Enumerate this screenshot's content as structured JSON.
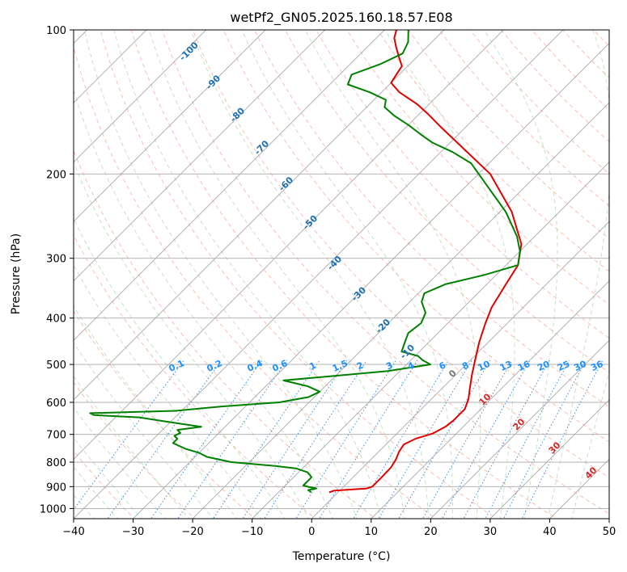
{
  "chart_data": {
    "type": "line",
    "title": "wetPf2_GN05.2025.160.18.57.E08",
    "xlabel": "Temperature (°C)",
    "ylabel": "Pressure (hPa)",
    "xlim": [
      -40,
      50
    ],
    "ylim": [
      1050,
      100
    ],
    "yscale": "log",
    "x_ticks": [
      -40,
      -30,
      -20,
      -10,
      0,
      10,
      20,
      30,
      40,
      50
    ],
    "y_ticks": [
      100,
      200,
      300,
      400,
      500,
      600,
      700,
      800,
      900,
      1000
    ],
    "grid": true,
    "skew": "skew-T log-P",
    "series": [
      {
        "color": "#e00000",
        "points": [
          [
            -1.5,
            925
          ],
          [
            -1,
            918
          ],
          [
            2,
            912
          ],
          [
            4.2,
            908
          ],
          [
            4.8,
            900
          ],
          [
            4.8,
            860
          ],
          [
            4.7,
            820
          ],
          [
            4.2,
            790
          ],
          [
            3.4,
            760
          ],
          [
            3.0,
            735
          ],
          [
            4.0,
            715
          ],
          [
            6.0,
            697
          ],
          [
            7.0,
            675
          ],
          [
            7.3,
            655
          ],
          [
            7.3,
            620
          ],
          [
            6.2,
            590
          ],
          [
            4.6,
            560
          ],
          [
            2.7,
            525
          ],
          [
            0.8,
            490
          ],
          [
            -1.5,
            450
          ],
          [
            -3.7,
            410
          ],
          [
            -5.3,
            380
          ],
          [
            -6.8,
            340
          ],
          [
            -8.0,
            310
          ],
          [
            -11.0,
            280
          ],
          [
            -18.0,
            240
          ],
          [
            -28.0,
            200
          ],
          [
            -44.0,
            160
          ],
          [
            -48.5,
            150
          ],
          [
            -52.0,
            143
          ],
          [
            -57.0,
            135
          ],
          [
            -60.0,
            129
          ],
          [
            -60.5,
            124
          ],
          [
            -61.0,
            119
          ],
          [
            -63.0,
            114
          ],
          [
            -65.0,
            109
          ],
          [
            -67.0,
            104
          ],
          [
            -68.0,
            100
          ]
        ]
      },
      {
        "color": "#008000",
        "points": [
          [
            -4.5,
            925
          ],
          [
            -5.4,
            915
          ],
          [
            -4.3,
            908
          ],
          [
            -5.7,
            902
          ],
          [
            -7.0,
            895
          ],
          [
            -7.0,
            880
          ],
          [
            -7.0,
            860
          ],
          [
            -8.5,
            840
          ],
          [
            -11.0,
            825
          ],
          [
            -15.0,
            815
          ],
          [
            -23.0,
            800
          ],
          [
            -28.0,
            780
          ],
          [
            -30.0,
            765
          ],
          [
            -33.0,
            750
          ],
          [
            -36.0,
            730
          ],
          [
            -36.0,
            715
          ],
          [
            -37.0,
            705
          ],
          [
            -36.5,
            695
          ],
          [
            -37.5,
            685
          ],
          [
            -34.0,
            675
          ],
          [
            -38.0,
            665
          ],
          [
            -42.0,
            655
          ],
          [
            -46.0,
            645
          ],
          [
            -54.0,
            638
          ],
          [
            -55.0,
            632
          ],
          [
            -41.0,
            625
          ],
          [
            -34.0,
            612
          ],
          [
            -25.0,
            600
          ],
          [
            -21.0,
            585
          ],
          [
            -20.0,
            570
          ],
          [
            -23.0,
            555
          ],
          [
            -28.0,
            540
          ],
          [
            -20.0,
            528
          ],
          [
            -12.0,
            516
          ],
          [
            -6.0,
            500
          ],
          [
            -8.0,
            490
          ],
          [
            -9.5,
            480
          ],
          [
            -13.0,
            470
          ],
          [
            -14.0,
            450
          ],
          [
            -15.0,
            430
          ],
          [
            -14.5,
            410
          ],
          [
            -15.5,
            390
          ],
          [
            -18.0,
            370
          ],
          [
            -19.0,
            355
          ],
          [
            -17.0,
            340
          ],
          [
            -12.0,
            325
          ],
          [
            -8.0,
            310
          ],
          [
            -10.0,
            290
          ],
          [
            -13.0,
            270
          ],
          [
            -19.0,
            240
          ],
          [
            -27.0,
            210
          ],
          [
            -33.0,
            190
          ],
          [
            -38.0,
            180
          ],
          [
            -43.0,
            172
          ],
          [
            -46.0,
            166
          ],
          [
            -50.0,
            158
          ],
          [
            -54.0,
            151
          ],
          [
            -57.0,
            145
          ],
          [
            -58.0,
            140
          ],
          [
            -62.0,
            135
          ],
          [
            -67.0,
            130
          ],
          [
            -68.0,
            124
          ],
          [
            -65.0,
            118
          ],
          [
            -63.0,
            112
          ],
          [
            -64.0,
            106
          ],
          [
            -66.0,
            100
          ]
        ]
      }
    ],
    "dry_adiabat_labels": [
      "-100",
      "-90",
      "-80",
      "-70",
      "-60",
      "-50",
      "-40",
      "-30",
      "-20",
      "-10"
    ],
    "mixing_ratio_labels": [
      "0.1",
      "0.2",
      "0.4",
      "0.6",
      "1",
      "1.5",
      "2",
      "3",
      "4",
      "6",
      "8",
      "10",
      "13",
      "16",
      "20",
      "25",
      "30",
      "36"
    ],
    "moist_adiabat_labels": [
      "0",
      "10",
      "20",
      "30",
      "40"
    ],
    "colors": {
      "temperature": "#e00000",
      "dewpoint": "#008000",
      "dry_adiabat": "#f08a70",
      "moist_adiabat": "#9fcf9f",
      "mixing_ratio": "#1e78d8",
      "isotherm": "#aaaaaa",
      "dry_label": "#1f6fb0",
      "mix_label": "#1e90ff",
      "moist_label": "#d62728"
    }
  }
}
